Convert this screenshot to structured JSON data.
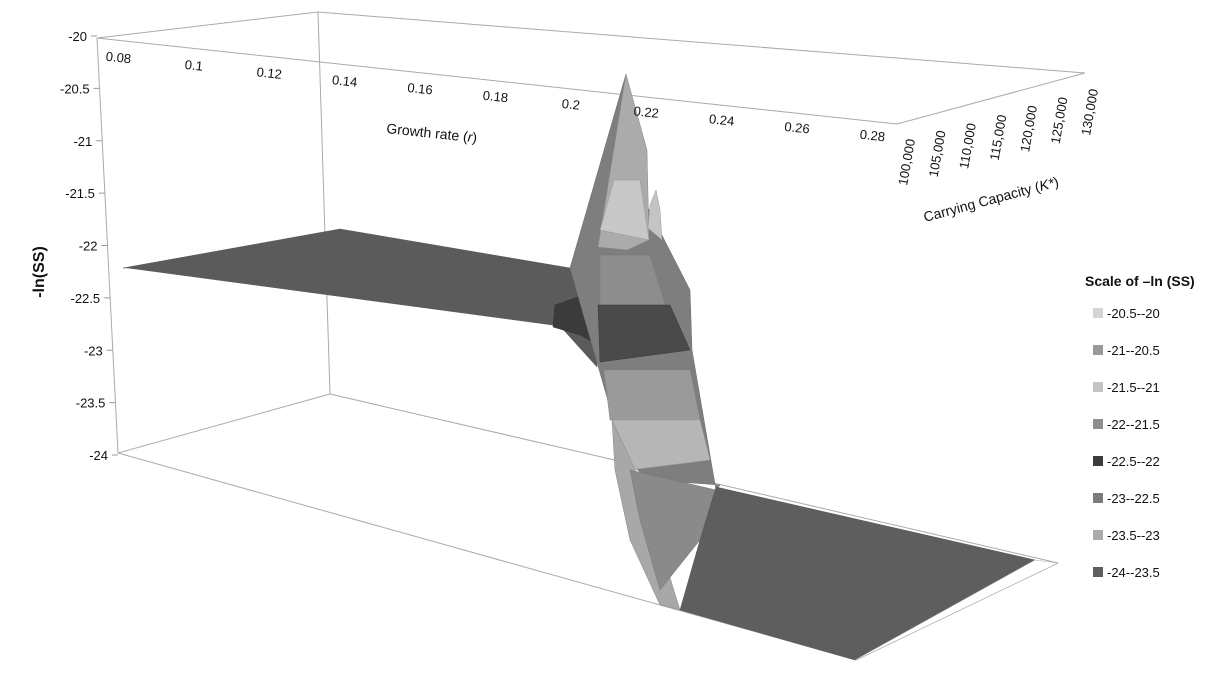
{
  "chart_data": {
    "type": "surface",
    "title": "",
    "zlabel": "-ln(SS)",
    "xlabel_prefix": "Growth rate (",
    "xlabel_var": "r",
    "xlabel_suffix": ")",
    "ylabel_prefix": "Carrying Capacity (",
    "ylabel_var": "K*",
    "ylabel_suffix": ")",
    "zlim": [
      -24,
      -20
    ],
    "z_ticks": [
      "-20",
      "-20.5",
      "-21",
      "-21.5",
      "-22",
      "-22.5",
      "-23",
      "-23.5",
      "-24"
    ],
    "x_ticks": [
      "0.08",
      "0.1",
      "0.12",
      "0.14",
      "0.16",
      "0.18",
      "0.2",
      "0.22",
      "0.24",
      "0.26",
      "0.28"
    ],
    "y_ticks": [
      "100,000",
      "105,000",
      "110,000",
      "115,000",
      "120,000",
      "125,000",
      "130,000"
    ],
    "surface": {
      "plateau_left": {
        "r_range": [
          0.08,
          0.215
        ],
        "value": -22.3
      },
      "peak": {
        "r": 0.225,
        "K": 100000,
        "value": -20.3
      },
      "secondary_peak": {
        "r": 0.23,
        "K": 105000,
        "value": -21.3
      },
      "plateau_right": {
        "r_range": [
          0.24,
          0.28
        ],
        "value": -23.9
      }
    },
    "legend_title": "Scale of –ln (SS)",
    "legend_position": "right",
    "legend": [
      {
        "label": "-20.5--20",
        "color": "#d4d4d4"
      },
      {
        "label": "-21--20.5",
        "color": "#9a9a9a"
      },
      {
        "label": "-21.5--21",
        "color": "#c4c4c4"
      },
      {
        "label": "-22--21.5",
        "color": "#8e8e8e"
      },
      {
        "label": "-22.5--22",
        "color": "#3b3b3b"
      },
      {
        "label": "-23--22.5",
        "color": "#7c7c7c"
      },
      {
        "label": "-23.5--23",
        "color": "#ababab"
      },
      {
        "label": "-24--23.5",
        "color": "#5e5e5e"
      }
    ]
  }
}
